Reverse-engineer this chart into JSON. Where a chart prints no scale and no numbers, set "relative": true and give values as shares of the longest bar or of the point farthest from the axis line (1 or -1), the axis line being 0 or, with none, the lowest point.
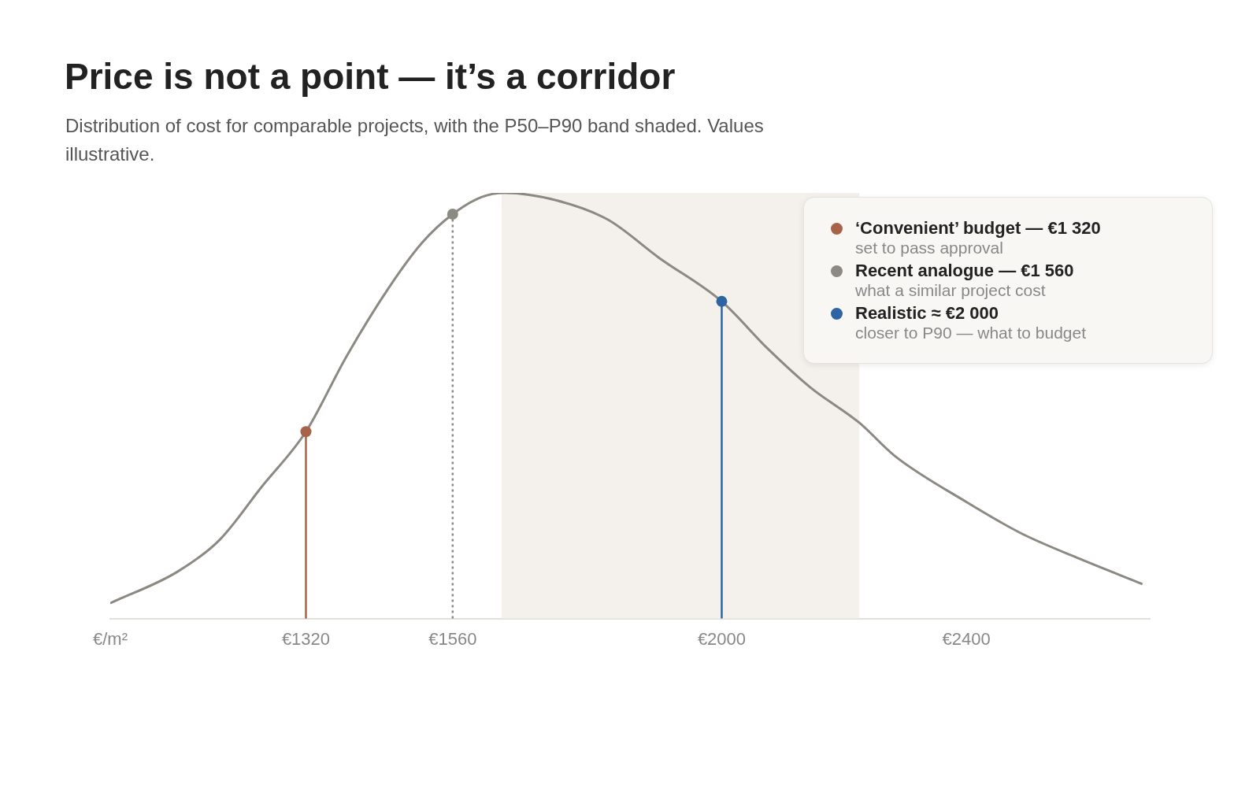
{
  "chart_data": {
    "type": "line",
    "title": "Price is not a point — it’s a corridor",
    "subtitle": "Distribution of cost for comparable projects, with the P50–P90 band shaded. Values illustrative.",
    "relative": true,
    "grid": false,
    "legend": "top right",
    "marker": "circle",
    "xlim": [
      1000,
      2700
    ],
    "xticks": [
      {
        "value": 1000,
        "label": "€/m²"
      },
      {
        "value": 1320,
        "label": "€1320"
      },
      {
        "value": 1560,
        "label": "€1560"
      },
      {
        "value": 2000,
        "label": "€2000"
      },
      {
        "value": 2400,
        "label": "€2400"
      }
    ],
    "series": [
      {
        "marker": "none",
        "color": "#8c8983",
        "x": [
          1000,
          1110,
          1179,
          1248,
          1320,
          1386,
          1455,
          1510,
          1560,
          1607,
          1645,
          1731,
          1814,
          1897,
          2000,
          2076,
          2145,
          2225,
          2283,
          2400,
          2490,
          2586,
          2688
        ],
        "values": [
          0.036,
          0.11,
          0.185,
          0.31,
          0.439,
          0.615,
          0.776,
          0.883,
          0.95,
          0.99,
          1,
          0.982,
          0.937,
          0.848,
          0.745,
          0.633,
          0.543,
          0.46,
          0.382,
          0.274,
          0.2,
          0.14,
          0.081
        ]
      },
      {
        "type": "scatter",
        "name": "‘Convenient’ budget — €1 320",
        "color": "#a8624a",
        "x": [
          1320
        ],
        "values": [
          0.439
        ]
      },
      {
        "type": "scatter",
        "name": "Recent analogue — €1 560",
        "color": "#8c8983",
        "x": [
          1560
        ],
        "values": [
          0.95
        ]
      },
      {
        "type": "scatter",
        "name": "Realistic ≈ €2 000",
        "color": "#2c64a4",
        "x": [
          2000
        ],
        "values": [
          0.745
        ]
      }
    ],
    "ref_lines": [
      {
        "axis": "x",
        "value": 1320,
        "color": "#a8624a",
        "line_style": "solid"
      },
      {
        "axis": "x",
        "value": 1560,
        "color": "#8c8983",
        "line_style": "dotted"
      },
      {
        "axis": "x",
        "value": 2000,
        "color": "#2c64a4",
        "line_style": "solid"
      }
    ],
    "bands": [
      {
        "axis": "x",
        "from": 1640,
        "to": 2225,
        "color": "#f4f1ed"
      }
    ],
    "annotations": [
      "set to pass approval",
      "what a similar project cost",
      "closer to P90 — what to budget"
    ]
  }
}
